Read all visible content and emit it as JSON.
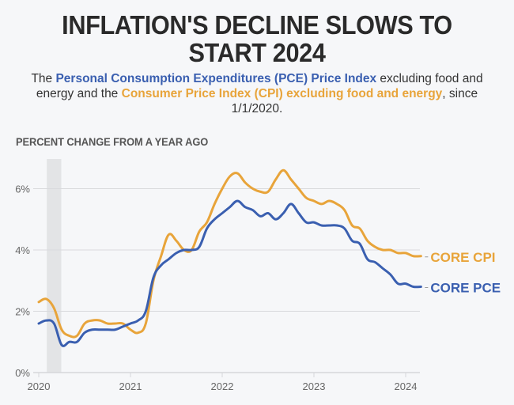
{
  "header": {
    "title_line1": "INFLATION'S DECLINE SLOWS TO",
    "title_line2": "START 2024",
    "subtitle_parts": {
      "p1": "The ",
      "pce_link": "Personal Consumption Expenditures (PCE) Price Index",
      "p2": " excluding food and energy and the ",
      "cpi_link": "Consumer Price Index (CPI) excluding food and energy",
      "p3": ", since 1/1/2020."
    }
  },
  "chart_data": {
    "type": "line",
    "title": "INFLATION'S DECLINE SLOWS TO START 2024",
    "ylabel": "PERCENT CHANGE FROM A YEAR AGO",
    "xlabel": "",
    "x_start": "2020-01",
    "x_frequency": "monthly",
    "x_ticks": [
      "2020",
      "2021",
      "2022",
      "2023",
      "2024"
    ],
    "y_ticks": [
      "0%",
      "2%",
      "4%",
      "6%"
    ],
    "ylim": [
      0,
      7
    ],
    "xlim": [
      "2020-01",
      "2024-03"
    ],
    "grid": "horizontal",
    "recession_shading": {
      "start": "2020-02",
      "end": "2020-04"
    },
    "series": [
      {
        "name": "CORE CPI",
        "color": "#e8a43a",
        "values": [
          2.3,
          2.4,
          2.1,
          1.4,
          1.2,
          1.2,
          1.6,
          1.7,
          1.7,
          1.6,
          1.6,
          1.6,
          1.4,
          1.3,
          1.6,
          3.0,
          3.8,
          4.5,
          4.3,
          4.0,
          4.0,
          4.6,
          4.9,
          5.5,
          6.0,
          6.4,
          6.5,
          6.2,
          6.0,
          5.9,
          5.9,
          6.3,
          6.6,
          6.3,
          6.0,
          5.7,
          5.6,
          5.5,
          5.6,
          5.5,
          5.3,
          4.8,
          4.7,
          4.3,
          4.1,
          4.0,
          4.0,
          3.9,
          3.9,
          3.8,
          3.8
        ]
      },
      {
        "name": "CORE PCE",
        "color": "#3a5fb0",
        "values": [
          1.6,
          1.7,
          1.6,
          0.9,
          1.0,
          1.0,
          1.3,
          1.4,
          1.4,
          1.4,
          1.4,
          1.5,
          1.6,
          1.7,
          2.0,
          3.1,
          3.5,
          3.7,
          3.9,
          4.0,
          4.0,
          4.1,
          4.7,
          5.0,
          5.2,
          5.4,
          5.6,
          5.4,
          5.3,
          5.1,
          5.2,
          5.0,
          5.2,
          5.5,
          5.2,
          4.9,
          4.9,
          4.8,
          4.8,
          4.8,
          4.7,
          4.3,
          4.2,
          3.7,
          3.6,
          3.4,
          3.2,
          2.9,
          2.9,
          2.8,
          2.8
        ]
      }
    ],
    "end_labels": [
      "CORE CPI",
      "CORE PCE"
    ]
  }
}
